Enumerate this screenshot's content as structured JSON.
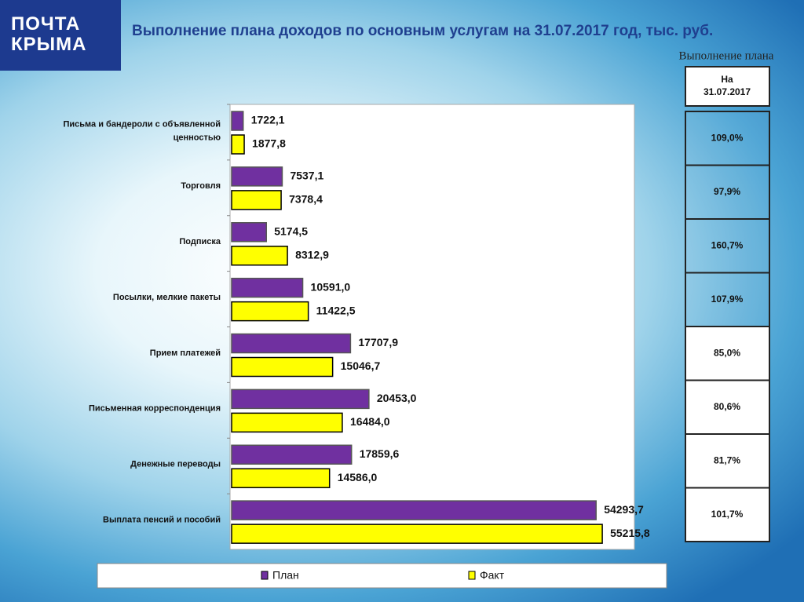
{
  "logo": {
    "lines": [
      "ПОЧТА",
      "КРЫМА"
    ]
  },
  "chart_data": {
    "type": "bar",
    "orientation": "horizontal",
    "title": "Выполнение плана доходов  по основным услугам на 31.07.2017 год, тыс. руб.",
    "categories": [
      "Письма и бандероли с объявленной ценностью",
      "Торговля",
      "Подписка",
      "Посылки, мелкие пакеты",
      "Прием платежей",
      "Письменная корреспонденция",
      "Денежные переводы",
      "Выплата пенсий и пособий"
    ],
    "series": [
      {
        "name": "План",
        "color": "#7030a0",
        "values": [
          1722.1,
          7537.1,
          5174.5,
          10591.0,
          17707.9,
          20453.0,
          17859.6,
          54293.7
        ],
        "value_labels": [
          "1722,1",
          "7537,1",
          "5174,5",
          "10591,0",
          "17707,9",
          "20453,0",
          "17859,6",
          "54293,7"
        ]
      },
      {
        "name": "Факт",
        "color": "#ffff00",
        "values": [
          1877.8,
          7378.4,
          8312.9,
          11422.5,
          15046.7,
          16484.0,
          14586.0,
          55215.8
        ],
        "value_labels": [
          "1877,8",
          "7378,4",
          "8312,9",
          "11422,5",
          "15046,7",
          "16484,0",
          "14586,0",
          "55215,8"
        ]
      }
    ],
    "xlim": [
      0,
      60000
    ],
    "legend": "bottom"
  },
  "table": {
    "caption": "Выполнение плана",
    "header": "На 31.07.2017",
    "rows": [
      "109,0%",
      "97,9%",
      "160,7%",
      "107,9%",
      "85,0%",
      "80,6%",
      "81,7%",
      "101,7%"
    ]
  }
}
